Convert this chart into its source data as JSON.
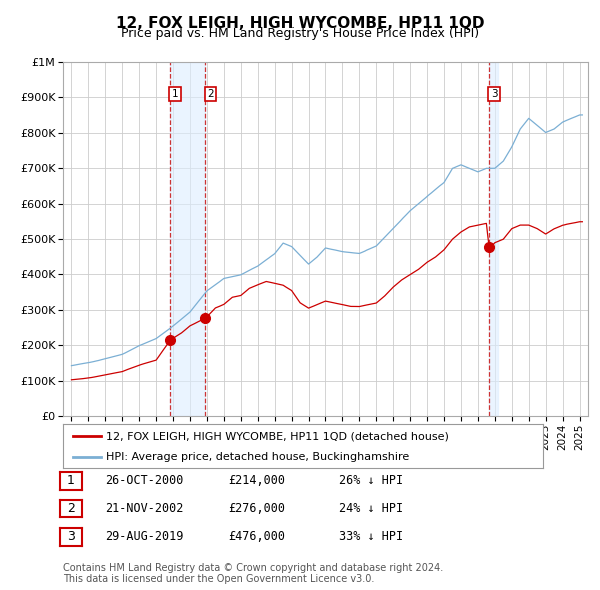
{
  "title": "12, FOX LEIGH, HIGH WYCOMBE, HP11 1QD",
  "subtitle": "Price paid vs. HM Land Registry's House Price Index (HPI)",
  "footnote1": "Contains HM Land Registry data © Crown copyright and database right 2024.",
  "footnote2": "This data is licensed under the Open Government Licence v3.0.",
  "legend_line1": "12, FOX LEIGH, HIGH WYCOMBE, HP11 1QD (detached house)",
  "legend_line2": "HPI: Average price, detached house, Buckinghamshire",
  "table": [
    {
      "num": "1",
      "date": "26-OCT-2000",
      "price": "£214,000",
      "note": "26% ↓ HPI"
    },
    {
      "num": "2",
      "date": "21-NOV-2002",
      "price": "£276,000",
      "note": "24% ↓ HPI"
    },
    {
      "num": "3",
      "date": "29-AUG-2019",
      "price": "£476,000",
      "note": "33% ↓ HPI"
    }
  ],
  "sale_dates": [
    2000.82,
    2002.9,
    2019.66
  ],
  "sale_prices": [
    214000,
    276000,
    476000
  ],
  "vline_color": "#cc3333",
  "shading_color": "#ddeeff",
  "shade_start": 2000.82,
  "shade_end": 2002.9,
  "shade3_start": 2019.66,
  "shade3_end": 2020.16,
  "ylim": [
    0,
    1000000
  ],
  "xlim": [
    1994.5,
    2025.5
  ],
  "background_color": "#ffffff",
  "grid_color": "#cccccc",
  "hpi_line_color": "#7bafd4",
  "sale_line_color": "#cc0000",
  "marker_color": "#cc0000"
}
